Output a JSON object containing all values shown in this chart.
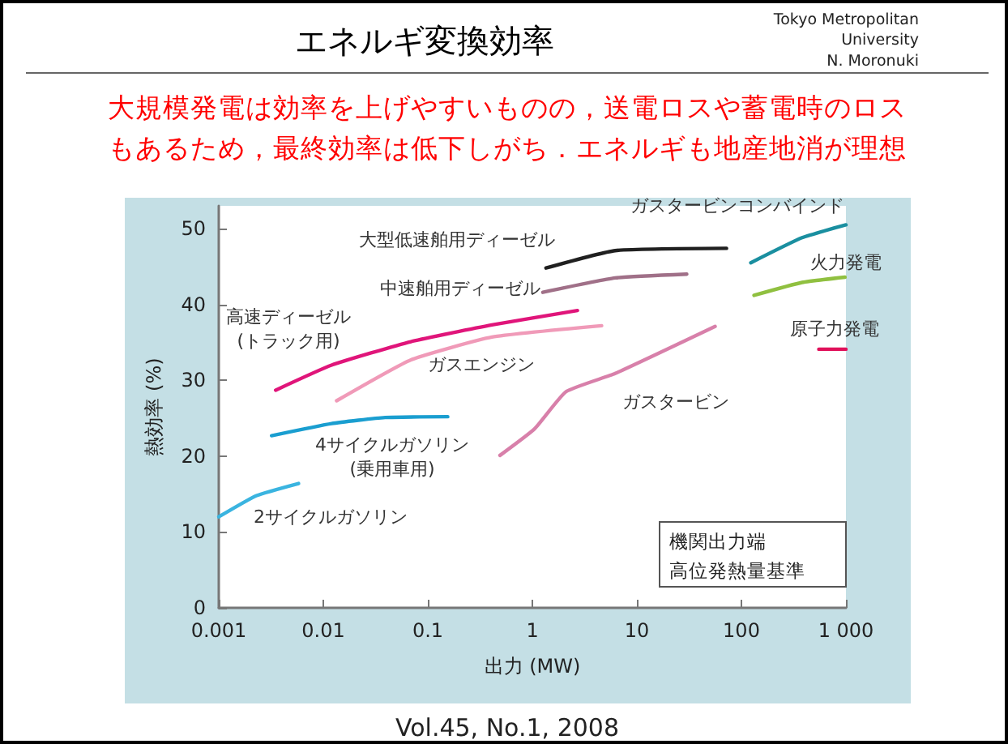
{
  "chart_data": {
    "type": "line",
    "title": "エネルギ変換効率",
    "subtitle": "大規模発電は効率を上げやすいものの，送電ロスや蓄電時のロスもあるため，最終効率は低下しがち．エネルギも地産地消が理想",
    "xlabel": "出力 (MW)",
    "ylabel": "熱効率 (%)",
    "log": "x",
    "grid": false,
    "legend": false,
    "marker": "none",
    "line_style": "solid",
    "xlim": [
      0.001,
      1000
    ],
    "xticks": [
      0.001,
      0.01,
      0.1,
      1,
      10,
      100,
      {
        "value": 1000,
        "label": "1 000"
      }
    ],
    "ylim": [
      0,
      53
    ],
    "yticks": [
      0,
      10,
      20,
      30,
      40,
      50
    ],
    "series": [
      {
        "name": "2サイクルガソリン",
        "color": "#3ab4e0",
        "x": [
          0.001,
          0.0023,
          0.0058
        ],
        "values": [
          12.0,
          14.8,
          16.4
        ]
      },
      {
        "name": "4サイクルガソリン(乗用車用)",
        "color": "#1a9ed0",
        "x": [
          0.0032,
          0.012,
          0.039,
          0.155
        ],
        "values": [
          22.7,
          24.3,
          25.1,
          25.2
        ]
      },
      {
        "name": "高速ディーゼル(トラック用)",
        "color": "#e0157a",
        "x": [
          0.0035,
          0.012,
          0.069,
          0.41,
          2.7
        ],
        "values": [
          28.7,
          32.0,
          35.1,
          37.3,
          39.2
        ]
      },
      {
        "name": "ガスエンジン",
        "color": "#f09ab8",
        "x": [
          0.0134,
          0.069,
          0.41,
          4.6
        ],
        "values": [
          27.3,
          32.7,
          35.7,
          37.2
        ]
      },
      {
        "name": "ガスタービン",
        "color": "#d880aa",
        "x": [
          0.49,
          1.05,
          2.1,
          6.2,
          56
        ],
        "values": [
          20.1,
          23.6,
          28.5,
          30.9,
          37.1
        ]
      },
      {
        "name": "中速舶用ディーゼル",
        "color": "#a07088",
        "x": [
          1.26,
          6.2,
          30
        ],
        "values": [
          41.6,
          43.5,
          44.0
        ]
      },
      {
        "name": "大型低速舶用ディーゼル",
        "color": "#202020",
        "x": [
          1.35,
          6.2,
          72
        ],
        "values": [
          44.8,
          47.1,
          47.4
        ]
      },
      {
        "name": "ガスタービンコンバインド",
        "color": "#1a8fa0",
        "x": [
          123,
          380,
          1000
        ],
        "values": [
          45.5,
          48.8,
          50.5
        ]
      },
      {
        "name": "火力発電",
        "color": "#90c040",
        "x": [
          132,
          380,
          980
        ],
        "values": [
          41.2,
          42.9,
          43.6
        ]
      },
      {
        "name": "原子力発電",
        "color": "#e0105a",
        "x": [
          550,
          1000
        ],
        "values": [
          34.1,
          34.1
        ]
      }
    ],
    "annotations": [
      "機関出力端",
      "高位発熱量基準",
      "Vol.45, No.1, 2008",
      "Tokyo Metropolitan\nUniversity\nN. Moronuki"
    ]
  }
}
